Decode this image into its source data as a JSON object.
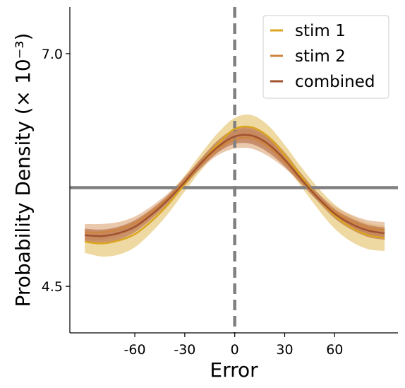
{
  "chart_data": {
    "type": "line",
    "xlabel": "Error",
    "ylabel": "Probability Density (× 10⁻³)",
    "xlim": [
      -99,
      98
    ],
    "ylim": [
      4.0,
      7.5
    ],
    "x_ticks": [
      -60,
      -30,
      0,
      30,
      60
    ],
    "x_tick_labels": [
      "-60",
      "-30",
      "0",
      "30",
      "60"
    ],
    "y_ticks": [
      7.0,
      4.5
    ],
    "y_tick_labels": [
      "7.0",
      "4.5"
    ],
    "legend_position": "top-right",
    "reference_lines": [
      {
        "orientation": "horizontal",
        "y": 5.56,
        "style": "solid",
        "color": "#808080"
      },
      {
        "orientation": "vertical",
        "x": 0,
        "style": "dashed",
        "color": "#808080"
      }
    ],
    "series": [
      {
        "name": "stim 1",
        "color": "#DAA520",
        "band_color": "#E7C470",
        "x": [
          -90,
          -80,
          -70,
          -60,
          -50,
          -40,
          -30,
          -20,
          -10,
          0,
          10,
          20,
          30,
          40,
          50,
          60,
          70,
          80,
          90
        ],
        "y": [
          4.98,
          4.96,
          4.99,
          5.06,
          5.2,
          5.38,
          5.6,
          5.83,
          6.03,
          6.19,
          6.21,
          6.11,
          5.91,
          5.68,
          5.45,
          5.26,
          5.13,
          5.05,
          5.02
        ],
        "lower": [
          4.86,
          4.82,
          4.84,
          4.92,
          5.08,
          5.28,
          5.52,
          5.75,
          5.94,
          6.06,
          6.08,
          5.99,
          5.8,
          5.57,
          5.33,
          5.12,
          4.98,
          4.9,
          4.88
        ],
        "upper": [
          5.1,
          5.08,
          5.11,
          5.19,
          5.31,
          5.47,
          5.69,
          5.93,
          6.15,
          6.31,
          6.34,
          6.23,
          6.02,
          5.78,
          5.56,
          5.38,
          5.26,
          5.18,
          5.15
        ]
      },
      {
        "name": "stim 2",
        "color": "#CD853F",
        "band_color": "#DDAA80",
        "x": [
          -90,
          -80,
          -70,
          -60,
          -50,
          -40,
          -30,
          -20,
          -10,
          0,
          10,
          20,
          30,
          40,
          50,
          60,
          70,
          80,
          90
        ],
        "y": [
          5.08,
          5.08,
          5.11,
          5.18,
          5.3,
          5.45,
          5.63,
          5.82,
          5.98,
          6.08,
          6.09,
          6.0,
          5.84,
          5.64,
          5.45,
          5.3,
          5.2,
          5.13,
          5.1
        ],
        "lower": [
          5.0,
          5.0,
          5.04,
          5.12,
          5.25,
          5.41,
          5.59,
          5.77,
          5.91,
          5.98,
          5.98,
          5.9,
          5.77,
          5.6,
          5.42,
          5.26,
          5.14,
          5.06,
          5.02
        ],
        "upper": [
          5.17,
          5.17,
          5.19,
          5.25,
          5.36,
          5.5,
          5.68,
          5.87,
          6.05,
          6.17,
          6.18,
          6.09,
          5.92,
          5.7,
          5.5,
          5.36,
          5.27,
          5.21,
          5.19
        ]
      },
      {
        "name": "combined",
        "color": "#A0522D",
        "band_color": "#B76E4A",
        "x": [
          -90,
          -80,
          -70,
          -60,
          -50,
          -40,
          -30,
          -20,
          -10,
          0,
          10,
          20,
          30,
          40,
          50,
          60,
          70,
          80,
          90
        ],
        "y": [
          5.05,
          5.04,
          5.07,
          5.14,
          5.27,
          5.43,
          5.62,
          5.83,
          6.0,
          6.11,
          6.12,
          6.03,
          5.86,
          5.65,
          5.45,
          5.28,
          5.17,
          5.1,
          5.07
        ],
        "lower": [
          4.98,
          4.97,
          5.0,
          5.08,
          5.22,
          5.39,
          5.58,
          5.78,
          5.94,
          6.03,
          6.03,
          5.94,
          5.79,
          5.6,
          5.41,
          5.23,
          5.11,
          5.03,
          5.0
        ],
        "upper": [
          5.12,
          5.11,
          5.14,
          5.21,
          5.33,
          5.48,
          5.67,
          5.88,
          6.07,
          6.19,
          6.21,
          6.12,
          5.94,
          5.71,
          5.5,
          5.33,
          5.23,
          5.16,
          5.13
        ]
      }
    ]
  }
}
